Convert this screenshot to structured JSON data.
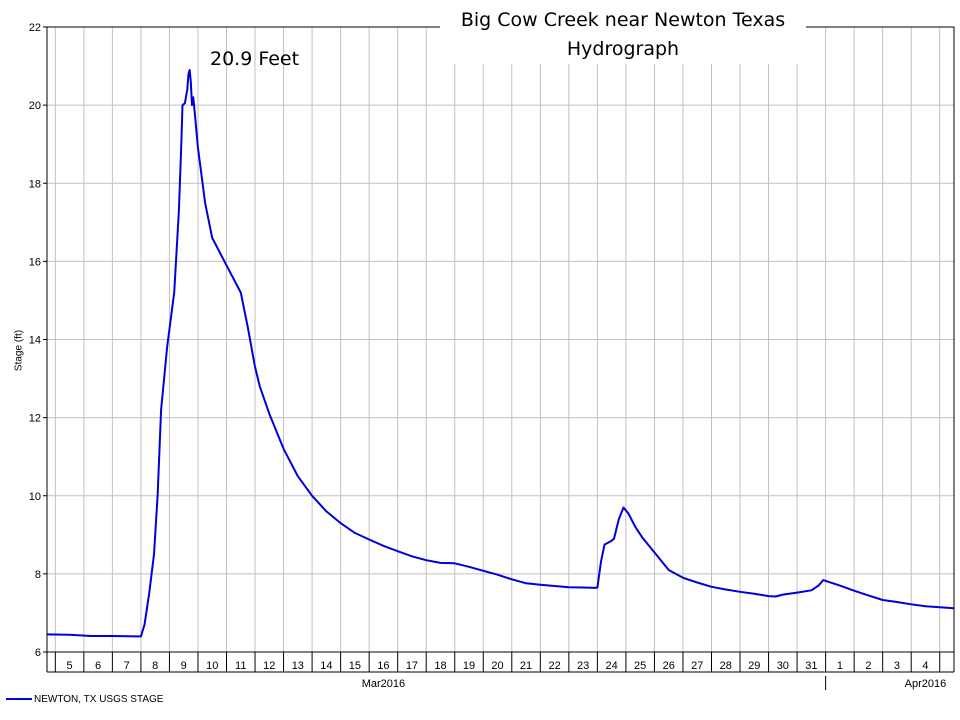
{
  "chart_data": {
    "type": "line",
    "title": [
      "Big Cow Creek near Newton Texas",
      "Hydrograph"
    ],
    "annotation": "20.9 Feet",
    "ylabel": "Stage (ft)",
    "xlabel": "",
    "ylim": [
      6,
      22
    ],
    "yticks": [
      6,
      8,
      10,
      12,
      14,
      16,
      18,
      20,
      22
    ],
    "x_range": [
      "2016-03-04T17:00",
      "2016-04-05T12:00"
    ],
    "x_day_labels": [
      {
        "date": "2016-03-05",
        "label": "5"
      },
      {
        "date": "2016-03-06",
        "label": "6"
      },
      {
        "date": "2016-03-07",
        "label": "7"
      },
      {
        "date": "2016-03-08",
        "label": "8"
      },
      {
        "date": "2016-03-09",
        "label": "9"
      },
      {
        "date": "2016-03-10",
        "label": "10"
      },
      {
        "date": "2016-03-11",
        "label": "11"
      },
      {
        "date": "2016-03-12",
        "label": "12"
      },
      {
        "date": "2016-03-13",
        "label": "13"
      },
      {
        "date": "2016-03-14",
        "label": "14"
      },
      {
        "date": "2016-03-15",
        "label": "15"
      },
      {
        "date": "2016-03-16",
        "label": "16"
      },
      {
        "date": "2016-03-17",
        "label": "17"
      },
      {
        "date": "2016-03-18",
        "label": "18"
      },
      {
        "date": "2016-03-19",
        "label": "19"
      },
      {
        "date": "2016-03-20",
        "label": "20"
      },
      {
        "date": "2016-03-21",
        "label": "21"
      },
      {
        "date": "2016-03-22",
        "label": "22"
      },
      {
        "date": "2016-03-23",
        "label": "23"
      },
      {
        "date": "2016-03-24",
        "label": "24"
      },
      {
        "date": "2016-03-25",
        "label": "25"
      },
      {
        "date": "2016-03-26",
        "label": "26"
      },
      {
        "date": "2016-03-27",
        "label": "27"
      },
      {
        "date": "2016-03-28",
        "label": "28"
      },
      {
        "date": "2016-03-29",
        "label": "29"
      },
      {
        "date": "2016-03-30",
        "label": "30"
      },
      {
        "date": "2016-03-31",
        "label": "31"
      },
      {
        "date": "2016-04-01",
        "label": "1"
      },
      {
        "date": "2016-04-02",
        "label": "2"
      },
      {
        "date": "2016-04-03",
        "label": "3"
      },
      {
        "date": "2016-04-04",
        "label": "4"
      }
    ],
    "x_period_labels": [
      {
        "date": "2016-03-16T12:00",
        "label": "Mar2016"
      },
      {
        "date": "2016-04-04T12:00",
        "label": "Apr2016"
      }
    ],
    "month_boundary": "2016-04-01",
    "grid": true,
    "legend_position": "bottom-left",
    "series": [
      {
        "name": "NEWTON, TX USGS STAGE",
        "color": "#0000dd",
        "points": [
          [
            "2016-03-04T17:00",
            6.45
          ],
          [
            "2016-03-05T12:00",
            6.44
          ],
          [
            "2016-03-06T06:00",
            6.41
          ],
          [
            "2016-03-07T00:00",
            6.41
          ],
          [
            "2016-03-07T20:00",
            6.4
          ],
          [
            "2016-03-08T00:00",
            6.4
          ],
          [
            "2016-03-08T03:00",
            6.7
          ],
          [
            "2016-03-08T07:00",
            7.5
          ],
          [
            "2016-03-08T11:00",
            8.5
          ],
          [
            "2016-03-08T14:00",
            10.0
          ],
          [
            "2016-03-08T17:00",
            12.2
          ],
          [
            "2016-03-08T22:00",
            13.8
          ],
          [
            "2016-03-09T04:00",
            15.2
          ],
          [
            "2016-03-09T08:00",
            17.3
          ],
          [
            "2016-03-09T10:00",
            19.0
          ],
          [
            "2016-03-09T11:00",
            20.0
          ],
          [
            "2016-03-09T13:00",
            20.05
          ],
          [
            "2016-03-09T15:00",
            20.4
          ],
          [
            "2016-03-09T16:00",
            20.8
          ],
          [
            "2016-03-09T17:00",
            20.9
          ],
          [
            "2016-03-09T18:00",
            20.6
          ],
          [
            "2016-03-09T19:00",
            20.0
          ],
          [
            "2016-03-09T20:00",
            20.2
          ],
          [
            "2016-03-09T21:00",
            19.9
          ],
          [
            "2016-03-10T00:00",
            18.9
          ],
          [
            "2016-03-10T06:00",
            17.5
          ],
          [
            "2016-03-10T12:00",
            16.6
          ],
          [
            "2016-03-11T00:00",
            15.9
          ],
          [
            "2016-03-11T12:00",
            15.2
          ],
          [
            "2016-03-11T18:00",
            14.3
          ],
          [
            "2016-03-12T00:00",
            13.3
          ],
          [
            "2016-03-12T04:00",
            12.8
          ],
          [
            "2016-03-12T12:00",
            12.1
          ],
          [
            "2016-03-13T00:00",
            11.2
          ],
          [
            "2016-03-13T12:00",
            10.5
          ],
          [
            "2016-03-14T00:00",
            10.0
          ],
          [
            "2016-03-14T12:00",
            9.6
          ],
          [
            "2016-03-15T00:00",
            9.3
          ],
          [
            "2016-03-15T12:00",
            9.05
          ],
          [
            "2016-03-16T00:00",
            8.88
          ],
          [
            "2016-03-16T12:00",
            8.72
          ],
          [
            "2016-03-17T00:00",
            8.58
          ],
          [
            "2016-03-17T12:00",
            8.45
          ],
          [
            "2016-03-18T00:00",
            8.35
          ],
          [
            "2016-03-18T12:00",
            8.28
          ],
          [
            "2016-03-19T00:00",
            8.27
          ],
          [
            "2016-03-19T12:00",
            8.18
          ],
          [
            "2016-03-20T00:00",
            8.08
          ],
          [
            "2016-03-20T12:00",
            7.98
          ],
          [
            "2016-03-21T00:00",
            7.86
          ],
          [
            "2016-03-21T12:00",
            7.76
          ],
          [
            "2016-03-22T00:00",
            7.72
          ],
          [
            "2016-03-22T12:00",
            7.69
          ],
          [
            "2016-03-23T00:00",
            7.66
          ],
          [
            "2016-03-23T12:00",
            7.65
          ],
          [
            "2016-03-23T22:00",
            7.64
          ],
          [
            "2016-03-24T00:00",
            7.65
          ],
          [
            "2016-03-24T03:00",
            8.3
          ],
          [
            "2016-03-24T06:00",
            8.75
          ],
          [
            "2016-03-24T12:00",
            8.85
          ],
          [
            "2016-03-24T14:00",
            8.9
          ],
          [
            "2016-03-24T18:00",
            9.4
          ],
          [
            "2016-03-24T22:00",
            9.7
          ],
          [
            "2016-03-25T02:00",
            9.55
          ],
          [
            "2016-03-25T08:00",
            9.2
          ],
          [
            "2016-03-25T14:00",
            8.92
          ],
          [
            "2016-03-26T00:00",
            8.55
          ],
          [
            "2016-03-26T12:00",
            8.1
          ],
          [
            "2016-03-27T00:00",
            7.9
          ],
          [
            "2016-03-27T12:00",
            7.78
          ],
          [
            "2016-03-28T00:00",
            7.67
          ],
          [
            "2016-03-28T12:00",
            7.6
          ],
          [
            "2016-03-29T00:00",
            7.54
          ],
          [
            "2016-03-29T12:00",
            7.49
          ],
          [
            "2016-03-30T00:00",
            7.43
          ],
          [
            "2016-03-30T06:00",
            7.42
          ],
          [
            "2016-03-30T12:00",
            7.47
          ],
          [
            "2016-03-31T00:00",
            7.52
          ],
          [
            "2016-03-31T12:00",
            7.58
          ],
          [
            "2016-03-31T18:00",
            7.7
          ],
          [
            "2016-03-31T22:00",
            7.84
          ],
          [
            "2016-04-01T02:00",
            7.8
          ],
          [
            "2016-04-01T12:00",
            7.7
          ],
          [
            "2016-04-02T00:00",
            7.57
          ],
          [
            "2016-04-02T12:00",
            7.45
          ],
          [
            "2016-04-03T00:00",
            7.33
          ],
          [
            "2016-04-03T12:00",
            7.28
          ],
          [
            "2016-04-04T00:00",
            7.22
          ],
          [
            "2016-04-04T12:00",
            7.17
          ],
          [
            "2016-04-05T12:00",
            7.12
          ]
        ]
      }
    ]
  }
}
